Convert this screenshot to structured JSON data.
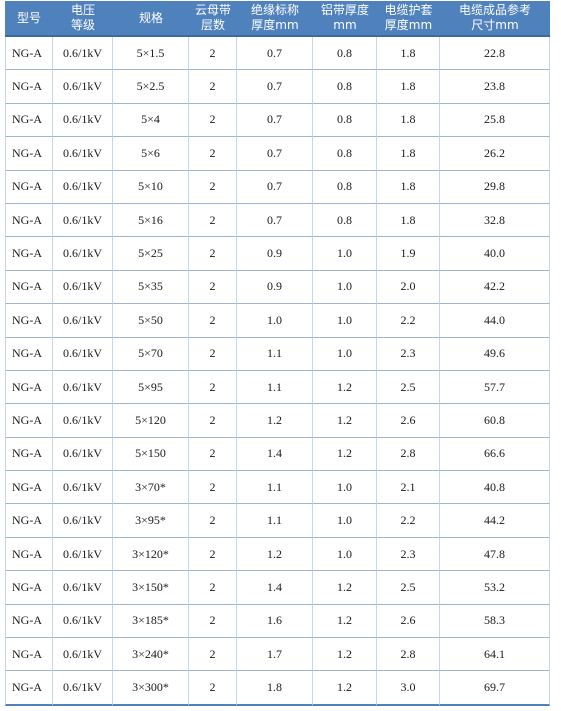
{
  "headers": [
    {
      "lines": [
        "型号"
      ]
    },
    {
      "lines": [
        "电压",
        "等级"
      ]
    },
    {
      "lines": [
        "规格"
      ]
    },
    {
      "lines": [
        "云母带",
        "层数"
      ]
    },
    {
      "lines": [
        "绝缘标称",
        "厚度mm"
      ]
    },
    {
      "lines": [
        "铝带厚度",
        "mm"
      ]
    },
    {
      "lines": [
        "电缆护套",
        "厚度mm"
      ]
    },
    {
      "lines": [
        "电缆成品参考",
        "尺寸mm"
      ]
    }
  ],
  "rows": [
    [
      "NG-A",
      "0.6/1kV",
      "5×1.5",
      "2",
      "0.7",
      "0.8",
      "1.8",
      "22.8"
    ],
    [
      "NG-A",
      "0.6/1kV",
      "5×2.5",
      "2",
      "0.7",
      "0.8",
      "1.8",
      "23.8"
    ],
    [
      "NG-A",
      "0.6/1kV",
      "5×4",
      "2",
      "0.7",
      "0.8",
      "1.8",
      "25.8"
    ],
    [
      "NG-A",
      "0.6/1kV",
      "5×6",
      "2",
      "0.7",
      "0.8",
      "1.8",
      "26.2"
    ],
    [
      "NG-A",
      "0.6/1kV",
      "5×10",
      "2",
      "0.7",
      "0.8",
      "1.8",
      "29.8"
    ],
    [
      "NG-A",
      "0.6/1kV",
      "5×16",
      "2",
      "0.7",
      "0.8",
      "1.8",
      "32.8"
    ],
    [
      "NG-A",
      "0.6/1kV",
      "5×25",
      "2",
      "0.9",
      "1.0",
      "1.9",
      "40.0"
    ],
    [
      "NG-A",
      "0.6/1kV",
      "5×35",
      "2",
      "0.9",
      "1.0",
      "2.0",
      "42.2"
    ],
    [
      "NG-A",
      "0.6/1kV",
      "5×50",
      "2",
      "1.0",
      "1.0",
      "2.2",
      "44.0"
    ],
    [
      "NG-A",
      "0.6/1kV",
      "5×70",
      "2",
      "1.1",
      "1.0",
      "2.3",
      "49.6"
    ],
    [
      "NG-A",
      "0.6/1kV",
      "5×95",
      "2",
      "1.1",
      "1.2",
      "2.5",
      "57.7"
    ],
    [
      "NG-A",
      "0.6/1kV",
      "5×120",
      "2",
      "1.2",
      "1.2",
      "2.6",
      "60.8"
    ],
    [
      "NG-A",
      "0.6/1kV",
      "5×150",
      "2",
      "1.4",
      "1.2",
      "2.8",
      "66.6"
    ],
    [
      "NG-A",
      "0.6/1kV",
      "3×70*",
      "2",
      "1.1",
      "1.0",
      "2.1",
      "40.8"
    ],
    [
      "NG-A",
      "0.6/1kV",
      "3×95*",
      "2",
      "1.1",
      "1.0",
      "2.2",
      "44.2"
    ],
    [
      "NG-A",
      "0.6/1kV",
      "3×120*",
      "2",
      "1.2",
      "1.0",
      "2.3",
      "47.8"
    ],
    [
      "NG-A",
      "0.6/1kV",
      "3×150*",
      "2",
      "1.4",
      "1.2",
      "2.5",
      "53.2"
    ],
    [
      "NG-A",
      "0.6/1kV",
      "3×185*",
      "2",
      "1.6",
      "1.2",
      "2.6",
      "58.3"
    ],
    [
      "NG-A",
      "0.6/1kV",
      "3×240*",
      "2",
      "1.7",
      "1.2",
      "2.8",
      "64.1"
    ],
    [
      "NG-A",
      "0.6/1kV",
      "3×300*",
      "2",
      "1.8",
      "1.2",
      "3.0",
      "69.7"
    ]
  ]
}
